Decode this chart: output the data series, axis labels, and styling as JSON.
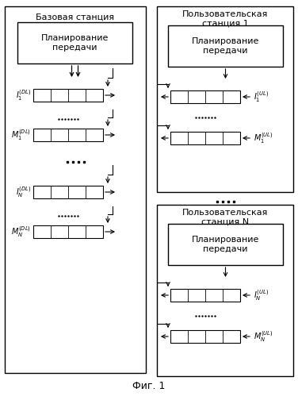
{
  "bg_color": "#ffffff",
  "bs_title": "Базовая станция",
  "us1_title_line1": "Пользовательская",
  "us1_title_line2": "станция 1",
  "usN_title_line1": "Пользовательская",
  "usN_title_line2": "станция N",
  "sched_line1": "Планирование",
  "sched_line2": "передачи",
  "fig_title": "Фиг. 1",
  "label_I1DL": "$I_1^{(DL)}$",
  "label_M1DL": "$M_1^{(DL)}$",
  "label_INDL": "$I_N^{(DL)}$",
  "label_MNDL": "$M_N^{(DL)}$",
  "label_I1UL": "$I_1^{(UL)}$",
  "label_M1UL": "$M_1^{(UL)}$",
  "label_INUL": "$I_N^{(UL)}$",
  "label_MNUL": "$M_N^{(UL)}$"
}
